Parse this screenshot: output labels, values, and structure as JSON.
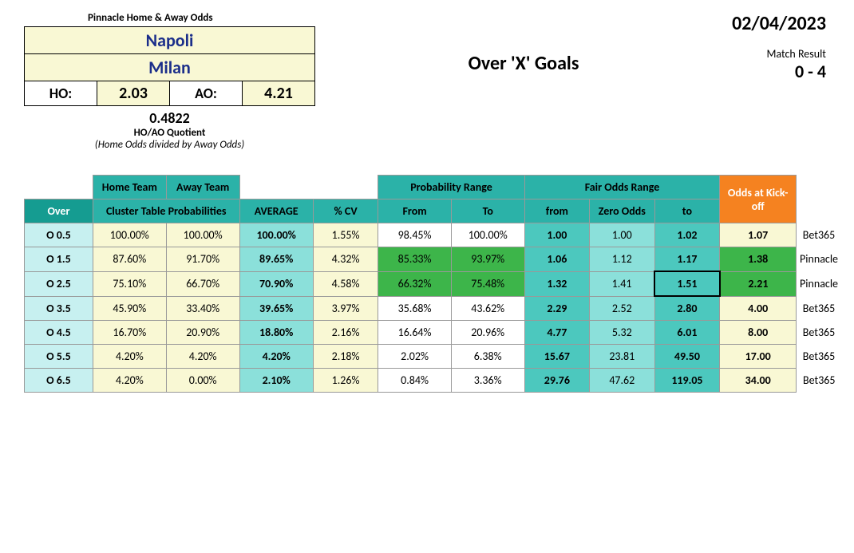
{
  "header": {
    "pinnacle_label": "Pinnacle Home & Away Odds",
    "home_team": "Napoli",
    "away_team": "Milan",
    "ho_label": "HO:",
    "ho_value": "2.03",
    "ao_label": "AO:",
    "ao_value": "4.21",
    "quotient_value": "0.4822",
    "quotient_label": "HO/AO Quotient",
    "quotient_desc": "(Home Odds divided by Away Odds)",
    "title": "Over 'X' Goals",
    "date": "02/04/2023",
    "match_result_label": "Match Result",
    "match_result_value": "0 - 4"
  },
  "table_headers": {
    "home_team": "Home Team",
    "away_team": "Away Team",
    "over": "Over",
    "cluster": "Cluster Table Probabilities",
    "average": "AVERAGE",
    "cv": "% CV",
    "prob_range": "Probability Range",
    "from": "From",
    "to": "To",
    "fair_odds": "Fair Odds Range",
    "from_lc": "from",
    "zero_odds": "Zero Odds",
    "to_lc": "to",
    "kickoff": "Odds at Kick-off"
  },
  "rows": [
    {
      "over": "O 0.5",
      "home": "100.00%",
      "away": "100.00%",
      "avg": "100.00%",
      "cv": "1.55%",
      "pf": "98.45%",
      "pt": "100.00%",
      "ff": "1.00",
      "zo": "1.00",
      "ft": "1.02",
      "ko": "1.07",
      "bk": "Bet365",
      "green": false,
      "hl": false
    },
    {
      "over": "O 1.5",
      "home": "87.60%",
      "away": "91.70%",
      "avg": "89.65%",
      "cv": "4.32%",
      "pf": "85.33%",
      "pt": "93.97%",
      "ff": "1.06",
      "zo": "1.12",
      "ft": "1.17",
      "ko": "1.38",
      "bk": "Pinnacle",
      "green": true,
      "hl": false
    },
    {
      "over": "O 2.5",
      "home": "75.10%",
      "away": "66.70%",
      "avg": "70.90%",
      "cv": "4.58%",
      "pf": "66.32%",
      "pt": "75.48%",
      "ff": "1.32",
      "zo": "1.41",
      "ft": "1.51",
      "ko": "2.21",
      "bk": "Pinnacle",
      "green": true,
      "hl": true
    },
    {
      "over": "O 3.5",
      "home": "45.90%",
      "away": "33.40%",
      "avg": "39.65%",
      "cv": "3.97%",
      "pf": "35.68%",
      "pt": "43.62%",
      "ff": "2.29",
      "zo": "2.52",
      "ft": "2.80",
      "ko": "4.00",
      "bk": "Bet365",
      "green": false,
      "hl": false
    },
    {
      "over": "O 4.5",
      "home": "16.70%",
      "away": "20.90%",
      "avg": "18.80%",
      "cv": "2.16%",
      "pf": "16.64%",
      "pt": "20.96%",
      "ff": "4.77",
      "zo": "5.32",
      "ft": "6.01",
      "ko": "8.00",
      "bk": "Bet365",
      "green": false,
      "hl": false
    },
    {
      "over": "O 5.5",
      "home": "4.20%",
      "away": "4.20%",
      "avg": "4.20%",
      "cv": "2.18%",
      "pf": "2.02%",
      "pt": "6.38%",
      "ff": "15.67",
      "zo": "23.81",
      "ft": "49.50",
      "ko": "17.00",
      "bk": "Bet365",
      "green": false,
      "hl": false
    },
    {
      "over": "O 6.5",
      "home": "4.20%",
      "away": "0.00%",
      "avg": "2.10%",
      "cv": "1.26%",
      "pf": "0.84%",
      "pt": "3.36%",
      "ff": "29.76",
      "zo": "47.62",
      "ft": "119.05",
      "ko": "34.00",
      "bk": "Bet365",
      "green": false,
      "hl": false
    }
  ],
  "colors": {
    "cream": "#f9f8d4",
    "teal_header": "#2bb2a8",
    "teal_dark": "#159c91",
    "teal_light": "#8be0da",
    "teal_med": "#4cc8be",
    "over_bg": "#c7f0f0",
    "green": "#3db54a",
    "orange": "#f58220",
    "navy": "#1b2e8a"
  }
}
